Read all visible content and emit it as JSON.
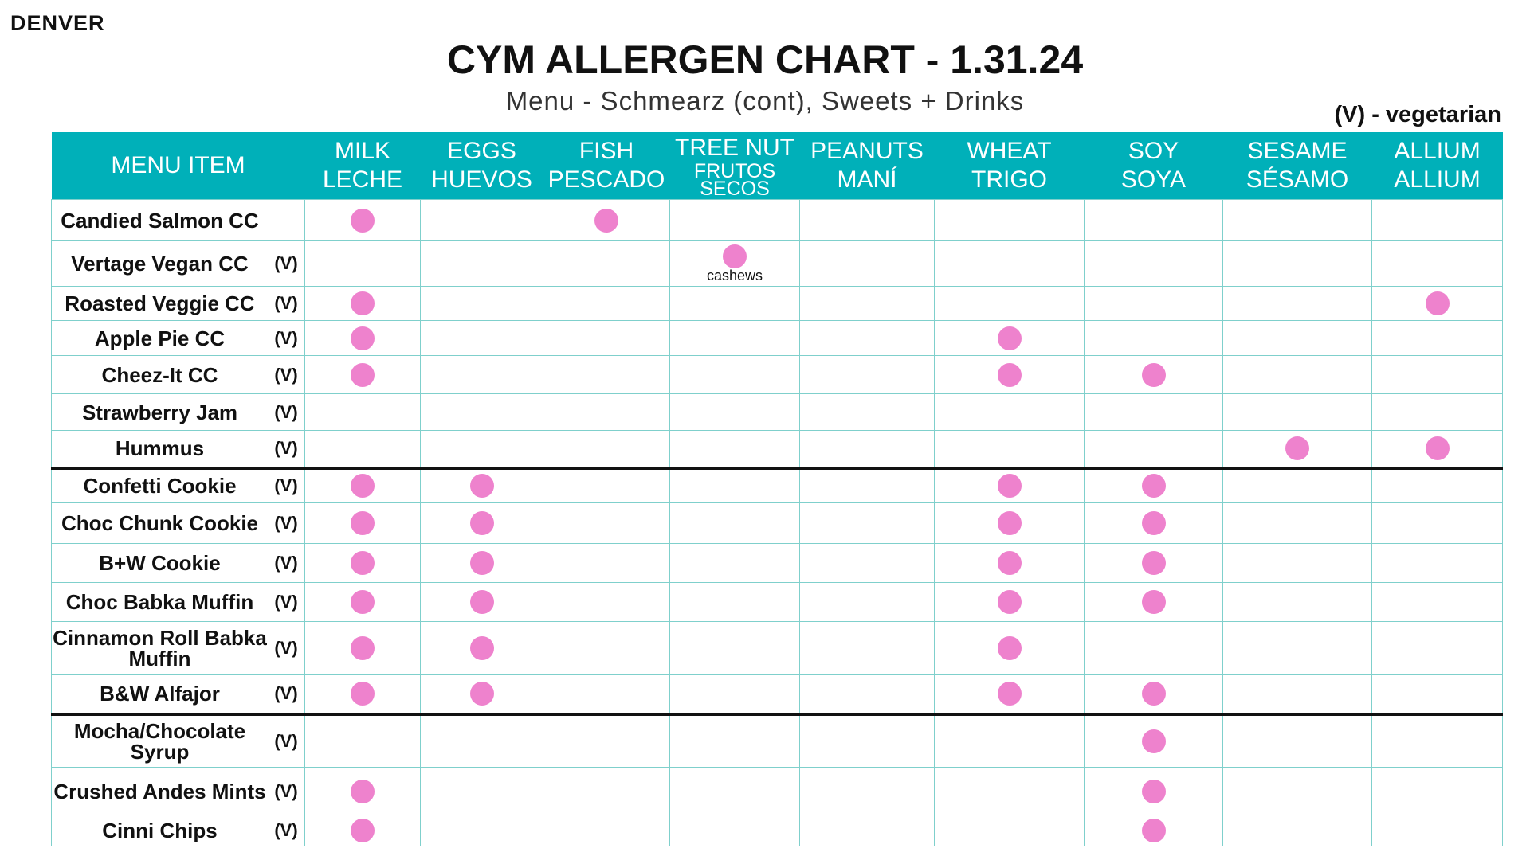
{
  "header": {
    "location": "DENVER",
    "title": "CYM ALLERGEN CHART - 1.31.24",
    "subtitle": "Menu - Schmearz (cont), Sweets + Drinks",
    "legend": "(V) - vegetarian"
  },
  "table": {
    "item_header": "MENU ITEM",
    "columns": [
      [
        "MILK",
        "LECHE"
      ],
      [
        "EGGS",
        "HUEVOS"
      ],
      [
        "FISH",
        "PESCADO"
      ],
      [
        "TREE NUT",
        "FRUTOS SECOS"
      ],
      [
        "PEANUTS",
        "MANÍ"
      ],
      [
        "WHEAT",
        "TRIGO"
      ],
      [
        "SOY",
        "SOYA"
      ],
      [
        "SESAME",
        "SÉSAMO"
      ],
      [
        "ALLIUM",
        "ALLIUM"
      ]
    ],
    "sections": [
      {
        "rows": [
          {
            "item": "Candied Salmon CC",
            "allergens": [
              true,
              false,
              true,
              false,
              false,
              false,
              false,
              false,
              false
            ]
          },
          {
            "item": "Vertage Vegan CC",
            "veg": "(V)",
            "allergens": [
              false,
              false,
              false,
              true,
              false,
              false,
              false,
              false,
              false
            ],
            "note": "cashews"
          },
          {
            "item": "Roasted Veggie CC",
            "veg": "(V)",
            "allergens": [
              true,
              false,
              false,
              false,
              false,
              false,
              false,
              false,
              true
            ]
          },
          {
            "item": "Apple Pie CC",
            "veg": "(V)",
            "allergens": [
              true,
              false,
              false,
              false,
              false,
              true,
              false,
              false,
              false
            ]
          },
          {
            "item": "Cheez-It CC",
            "veg": "(V)",
            "allergens": [
              true,
              false,
              false,
              false,
              false,
              true,
              true,
              false,
              false
            ]
          },
          {
            "item": "Strawberry Jam",
            "veg": "(V)",
            "allergens": [
              false,
              false,
              false,
              false,
              false,
              false,
              false,
              false,
              false
            ]
          },
          {
            "item": "Hummus",
            "veg": "(V)",
            "allergens": [
              false,
              false,
              false,
              false,
              false,
              false,
              false,
              true,
              true
            ]
          }
        ]
      },
      {
        "rows": [
          {
            "item": "Confetti Cookie",
            "veg": "(V)",
            "allergens": [
              true,
              true,
              false,
              false,
              false,
              true,
              true,
              false,
              false
            ]
          },
          {
            "item": "Choc Chunk Cookie",
            "veg": "(V)",
            "allergens": [
              true,
              true,
              false,
              false,
              false,
              true,
              true,
              false,
              false
            ]
          },
          {
            "item": "B+W Cookie",
            "veg": "(V)",
            "allergens": [
              true,
              true,
              false,
              false,
              false,
              true,
              true,
              false,
              false
            ]
          },
          {
            "item": "Choc Babka Muffin",
            "veg": "(V)",
            "allergens": [
              true,
              true,
              false,
              false,
              false,
              true,
              true,
              false,
              false
            ]
          },
          {
            "item": "Cinnamon Roll Babka Muffin",
            "veg": "(V)",
            "allergens": [
              true,
              true,
              false,
              false,
              false,
              true,
              false,
              false,
              false
            ]
          },
          {
            "item": "B&W Alfajor",
            "veg": "(V)",
            "allergens": [
              true,
              true,
              false,
              false,
              false,
              true,
              true,
              false,
              false
            ]
          }
        ]
      },
      {
        "rows": [
          {
            "item": "Mocha/Chocolate Syrup",
            "veg": "(V)",
            "allergens": [
              false,
              false,
              false,
              false,
              false,
              false,
              true,
              false,
              false
            ]
          },
          {
            "item": "Crushed Andes Mints",
            "veg": "(V)",
            "allergens": [
              true,
              false,
              false,
              false,
              false,
              false,
              true,
              false,
              false
            ]
          },
          {
            "item": "Cinni Chips",
            "veg": "(V)",
            "allergens": [
              true,
              false,
              false,
              false,
              false,
              false,
              true,
              false,
              false
            ]
          }
        ]
      }
    ]
  }
}
